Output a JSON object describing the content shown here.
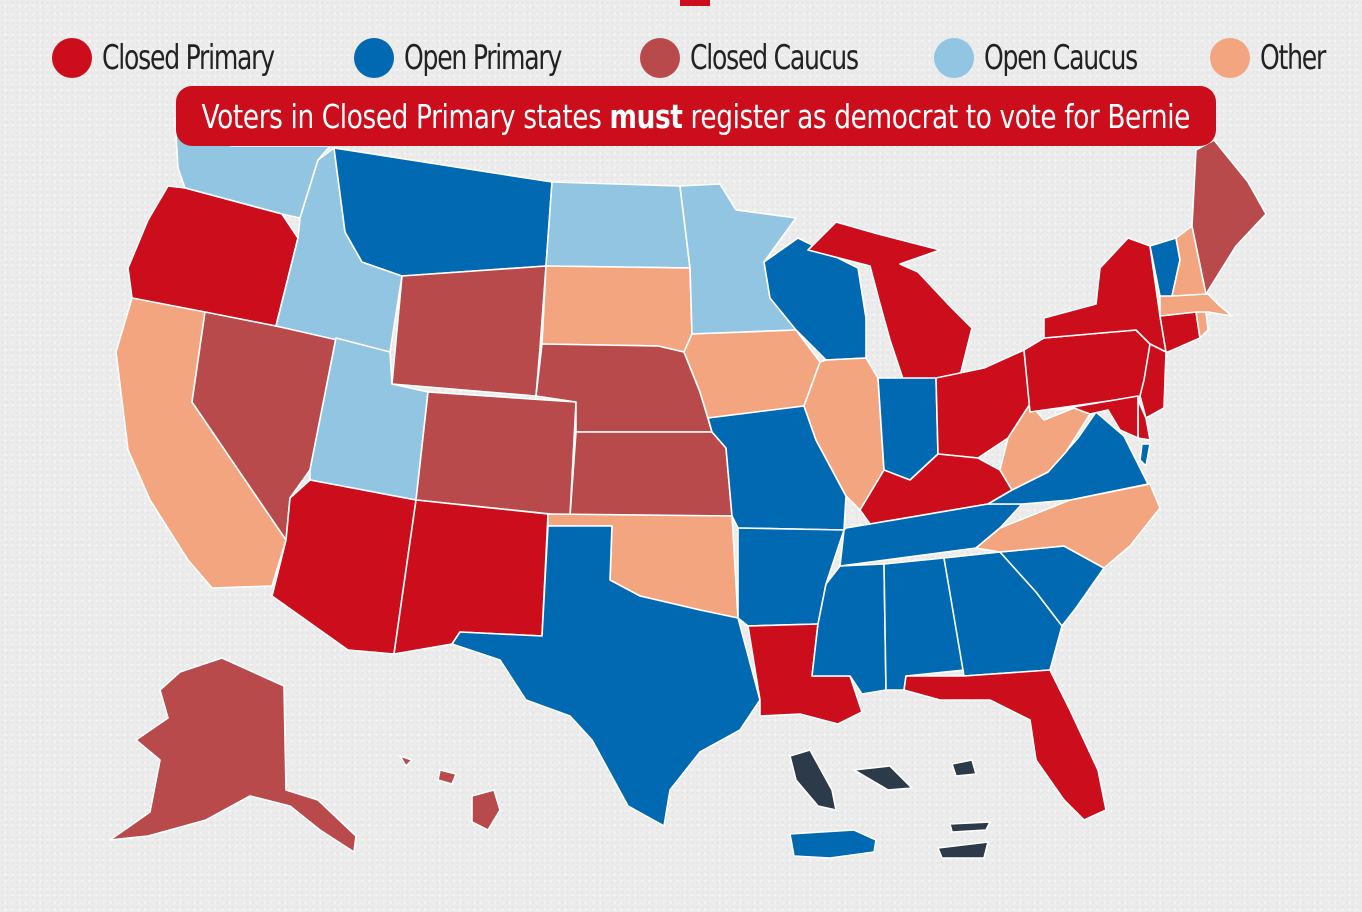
{
  "legend": {
    "items": [
      {
        "label": "Closed Primary",
        "color": "#cc0d1c"
      },
      {
        "label": "Open Primary",
        "color": "#0069b1"
      },
      {
        "label": "Closed Caucus",
        "color": "#b94a4b"
      },
      {
        "label": "Open Caucus",
        "color": "#92c5e1"
      },
      {
        "label": "Other",
        "color": "#f3a580"
      }
    ]
  },
  "banner": {
    "text_before": "Voters in Closed Primary states ",
    "text_bold": "must",
    "text_after": " register as democrat to vote for Bernie",
    "color": "#cc0d1c"
  },
  "colors": {
    "closed_primary": "#cc0d1c",
    "open_primary": "#0069b1",
    "closed_caucus": "#b94a4b",
    "open_caucus": "#92c5e1",
    "other": "#f3a580",
    "territory_dark": "#2d3a4a"
  },
  "states": {
    "WA": "open_caucus",
    "OR": "closed_primary",
    "CA": "other",
    "NV": "closed_caucus",
    "ID": "open_caucus",
    "MT": "open_primary",
    "WY": "closed_caucus",
    "UT": "open_caucus",
    "AZ": "closed_primary",
    "CO": "closed_caucus",
    "NM": "closed_primary",
    "ND": "open_caucus",
    "SD": "other",
    "NE": "closed_caucus",
    "KS": "closed_caucus",
    "OK": "other",
    "TX": "open_primary",
    "MN": "open_caucus",
    "IA": "other",
    "MO": "open_primary",
    "AR": "open_primary",
    "LA": "closed_primary",
    "WI": "open_primary",
    "IL": "other",
    "MI": "closed_primary",
    "IN": "open_primary",
    "OH": "closed_primary",
    "KY": "closed_primary",
    "TN": "open_primary",
    "MS": "open_primary",
    "AL": "open_primary",
    "GA": "open_primary",
    "FL": "closed_primary",
    "SC": "open_primary",
    "NC": "other",
    "VA": "open_primary",
    "WV": "other",
    "PA": "closed_primary",
    "NY": "closed_primary",
    "NJ": "closed_primary",
    "DE": "closed_primary",
    "MD": "closed_primary",
    "DC": "open_primary",
    "CT": "closed_primary",
    "RI": "other",
    "MA": "other",
    "VT": "open_primary",
    "NH": "other",
    "ME": "closed_caucus",
    "AK": "closed_caucus",
    "HI": "closed_caucus",
    "PR": "open_primary",
    "USVI": "territory_dark"
  }
}
